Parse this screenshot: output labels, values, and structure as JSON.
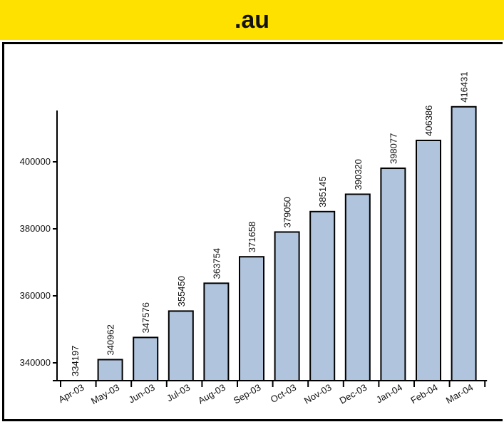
{
  "header": {
    "title": ".au"
  },
  "colors": {
    "header_bg": "#ffe100",
    "bar_fill": "#b0c4de",
    "bar_stroke": "#000000"
  },
  "chart_data": {
    "type": "bar",
    "title": ".au",
    "xlabel": "",
    "ylabel": "",
    "categories": [
      "Apr-03",
      "May-03",
      "Jun-03",
      "Jul-03",
      "Aug-03",
      "Sep-03",
      "Oct-03",
      "Nov-03",
      "Dec-03",
      "Jan-04",
      "Feb-04",
      "Mar-04"
    ],
    "values": [
      334197,
      340962,
      347576,
      355450,
      363754,
      371658,
      379050,
      385145,
      390320,
      398077,
      406386,
      416431
    ],
    "yticks": [
      340000,
      360000,
      380000,
      400000
    ],
    "ylim": [
      333000,
      417000
    ],
    "grid": false,
    "legend": "none"
  }
}
